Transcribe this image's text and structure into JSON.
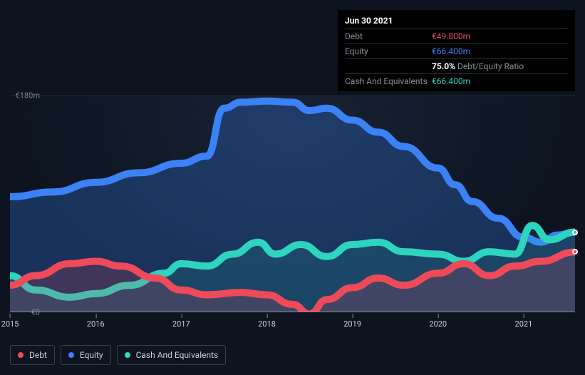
{
  "tooltip": {
    "date": "Jun 30 2021",
    "rows": {
      "debt_label": "Debt",
      "debt_value": "€49.800m",
      "equity_label": "Equity",
      "equity_value": "€66.400m",
      "ratio_value": "75.0%",
      "ratio_label": "Debt/Equity Ratio",
      "cash_label": "Cash And Equivalents",
      "cash_value": "€66.400m"
    }
  },
  "chart": {
    "type": "area-line",
    "background_color": "#0d1420",
    "grid_color": "#2a2f36",
    "axis_color": "#888d94",
    "text_color": "#ccd1d8",
    "y_axis": {
      "min": 0,
      "max": 180,
      "unit_prefix": "€",
      "unit_suffix": "m",
      "ticks": [
        {
          "v": 180,
          "label": "€180m"
        },
        {
          "v": 0,
          "label": "€0"
        }
      ]
    },
    "x_axis": {
      "min": 2015.0,
      "max": 2021.6,
      "ticks": [
        {
          "v": 2015,
          "label": "2015"
        },
        {
          "v": 2016,
          "label": "2016"
        },
        {
          "v": 2017,
          "label": "2017"
        },
        {
          "v": 2018,
          "label": "2018"
        },
        {
          "v": 2019,
          "label": "2019"
        },
        {
          "v": 2020,
          "label": "2020"
        },
        {
          "v": 2021,
          "label": "2021"
        }
      ]
    },
    "series": {
      "equity": {
        "label": "Equity",
        "color": "#3b82f6",
        "fill": "rgba(59,130,246,0.28)",
        "line_width": 2.5,
        "data": [
          [
            2015.0,
            96
          ],
          [
            2015.5,
            100
          ],
          [
            2016.0,
            108
          ],
          [
            2016.5,
            116
          ],
          [
            2017.0,
            124
          ],
          [
            2017.3,
            130
          ],
          [
            2017.5,
            170
          ],
          [
            2017.7,
            175
          ],
          [
            2018.0,
            176
          ],
          [
            2018.3,
            175
          ],
          [
            2018.5,
            168
          ],
          [
            2018.7,
            170
          ],
          [
            2019.0,
            160
          ],
          [
            2019.3,
            150
          ],
          [
            2019.6,
            138
          ],
          [
            2020.0,
            120
          ],
          [
            2020.2,
            106
          ],
          [
            2020.4,
            92
          ],
          [
            2020.7,
            78
          ],
          [
            2021.0,
            62
          ],
          [
            2021.2,
            58
          ],
          [
            2021.4,
            64
          ],
          [
            2021.6,
            66.4
          ]
        ]
      },
      "debt": {
        "label": "Debt",
        "color": "#ef4a59",
        "fill": "rgba(239,74,89,0.18)",
        "line_width": 2.5,
        "data": [
          [
            2015.0,
            22
          ],
          [
            2015.3,
            30
          ],
          [
            2015.7,
            40
          ],
          [
            2016.0,
            42
          ],
          [
            2016.3,
            38
          ],
          [
            2016.7,
            28
          ],
          [
            2017.0,
            18
          ],
          [
            2017.3,
            14
          ],
          [
            2017.7,
            16
          ],
          [
            2018.0,
            14
          ],
          [
            2018.3,
            6
          ],
          [
            2018.5,
            -2
          ],
          [
            2018.7,
            10
          ],
          [
            2019.0,
            20
          ],
          [
            2019.3,
            28
          ],
          [
            2019.6,
            22
          ],
          [
            2020.0,
            32
          ],
          [
            2020.3,
            40
          ],
          [
            2020.6,
            30
          ],
          [
            2020.9,
            38
          ],
          [
            2021.2,
            42
          ],
          [
            2021.6,
            49.8
          ]
        ]
      },
      "cash": {
        "label": "Cash And Equivalents",
        "color": "#2dd4bf",
        "fill": "rgba(45,212,191,0.12)",
        "line_width": 2.5,
        "data": [
          [
            2015.0,
            30
          ],
          [
            2015.3,
            18
          ],
          [
            2015.7,
            12
          ],
          [
            2016.0,
            15
          ],
          [
            2016.4,
            22
          ],
          [
            2016.8,
            32
          ],
          [
            2017.0,
            40
          ],
          [
            2017.3,
            38
          ],
          [
            2017.6,
            48
          ],
          [
            2017.9,
            58
          ],
          [
            2018.1,
            48
          ],
          [
            2018.4,
            56
          ],
          [
            2018.7,
            46
          ],
          [
            2019.0,
            56
          ],
          [
            2019.3,
            58
          ],
          [
            2019.6,
            50
          ],
          [
            2020.0,
            48
          ],
          [
            2020.3,
            42
          ],
          [
            2020.6,
            50
          ],
          [
            2020.9,
            48
          ],
          [
            2021.1,
            72
          ],
          [
            2021.3,
            60
          ],
          [
            2021.6,
            66.4
          ]
        ]
      }
    },
    "end_markers": [
      {
        "series": "equity",
        "color": "#3b82f6"
      },
      {
        "series": "cash",
        "color": "#2dd4bf"
      },
      {
        "series": "debt",
        "color": "#ef4a59"
      }
    ]
  },
  "legend": [
    {
      "key": "debt",
      "label": "Debt",
      "color": "#ef4a59"
    },
    {
      "key": "equity",
      "label": "Equity",
      "color": "#3b82f6"
    },
    {
      "key": "cash",
      "label": "Cash And Equivalents",
      "color": "#2dd4bf"
    }
  ]
}
